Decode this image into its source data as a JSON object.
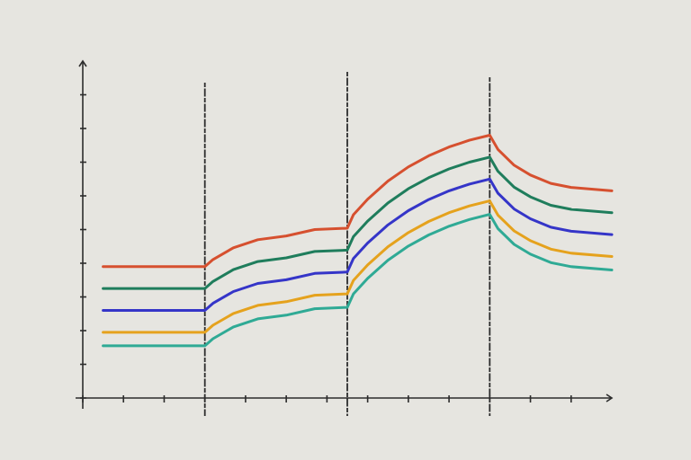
{
  "chart_data": {
    "type": "line",
    "title": "",
    "xlabel": "",
    "ylabel": "",
    "xlim": [
      0,
      13
    ],
    "ylim": [
      0,
      10
    ],
    "x_ticks": [
      0,
      1,
      2,
      3,
      4,
      5,
      6,
      7,
      8,
      9,
      10,
      11,
      12
    ],
    "y_ticks": [
      0,
      1,
      2,
      3,
      4,
      5,
      6,
      7,
      8,
      9
    ],
    "grid": false,
    "legend": "none",
    "tick_labels_shown": false,
    "phase_boundaries_x": [
      3,
      6.5,
      10
    ],
    "series": [
      {
        "color": "#d6502f",
        "x": [
          0.5,
          3,
          3.2,
          3.7,
          4.3,
          5,
          5.7,
          6.5,
          6.65,
          7,
          7.5,
          8,
          8.5,
          9,
          9.5,
          10,
          10.2,
          10.6,
          11,
          11.5,
          12,
          13
        ],
        "values": [
          3.9,
          3.9,
          4.11,
          4.46,
          4.7,
          4.81,
          5.0,
          5.04,
          5.44,
          5.9,
          6.44,
          6.86,
          7.19,
          7.45,
          7.65,
          7.8,
          7.38,
          6.91,
          6.62,
          6.37,
          6.25,
          6.15
        ]
      },
      {
        "color": "#1f7d5c",
        "x": [
          0.5,
          3,
          3.2,
          3.7,
          4.3,
          5,
          5.7,
          6.5,
          6.65,
          7,
          7.5,
          8,
          8.5,
          9,
          9.5,
          10,
          10.2,
          10.6,
          11,
          11.5,
          12,
          13
        ],
        "values": [
          3.25,
          3.25,
          3.46,
          3.81,
          4.05,
          4.16,
          4.35,
          4.39,
          4.79,
          5.25,
          5.79,
          6.21,
          6.54,
          6.8,
          7.0,
          7.15,
          6.73,
          6.26,
          5.97,
          5.72,
          5.6,
          5.5
        ]
      },
      {
        "color": "#3535c8",
        "x": [
          0.5,
          3,
          3.2,
          3.7,
          4.3,
          5,
          5.7,
          6.5,
          6.65,
          7,
          7.5,
          8,
          8.5,
          9,
          9.5,
          10,
          10.2,
          10.6,
          11,
          11.5,
          12,
          13
        ],
        "values": [
          2.6,
          2.6,
          2.81,
          3.16,
          3.4,
          3.51,
          3.7,
          3.74,
          4.14,
          4.6,
          5.14,
          5.56,
          5.89,
          6.15,
          6.35,
          6.5,
          6.08,
          5.61,
          5.32,
          5.07,
          4.95,
          4.85
        ]
      },
      {
        "color": "#e5a21d",
        "x": [
          0.5,
          3,
          3.2,
          3.7,
          4.3,
          5,
          5.7,
          6.5,
          6.65,
          7,
          7.5,
          8,
          8.5,
          9,
          9.5,
          10,
          10.2,
          10.6,
          11,
          11.5,
          12,
          13
        ],
        "values": [
          1.95,
          1.95,
          2.16,
          2.51,
          2.75,
          2.86,
          3.05,
          3.09,
          3.49,
          3.95,
          4.49,
          4.91,
          5.24,
          5.5,
          5.7,
          5.85,
          5.43,
          4.96,
          4.67,
          4.42,
          4.3,
          4.2
        ]
      },
      {
        "color": "#2faa95",
        "x": [
          0.5,
          3,
          3.2,
          3.7,
          4.3,
          5,
          5.7,
          6.5,
          6.65,
          7,
          7.5,
          8,
          8.5,
          9,
          9.5,
          10,
          10.2,
          10.6,
          11,
          11.5,
          12,
          13
        ],
        "values": [
          1.55,
          1.55,
          1.76,
          2.11,
          2.35,
          2.46,
          2.65,
          2.69,
          3.09,
          3.55,
          4.09,
          4.51,
          4.84,
          5.1,
          5.3,
          5.45,
          5.03,
          4.56,
          4.27,
          4.02,
          3.9,
          3.8
        ]
      }
    ]
  }
}
